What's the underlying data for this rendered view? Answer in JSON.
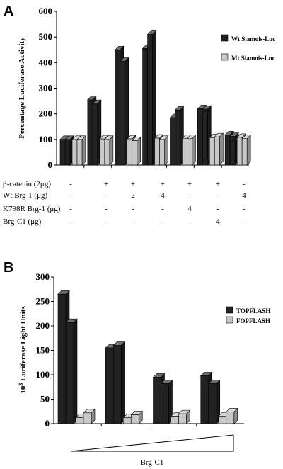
{
  "chart_data": [
    {
      "panel": "A",
      "type": "bar",
      "ylabel": "Percentage Luciferase Activity",
      "ylim": [
        0,
        600
      ],
      "yticks": [
        "0",
        "100",
        "200",
        "300",
        "400",
        "500",
        "600"
      ],
      "series": [
        {
          "name": "Wt Siamois-Luc",
          "color": "#222222",
          "values": [
            [
              100,
              100
            ],
            [
              255,
              240
            ],
            [
              450,
              405
            ],
            [
              455,
              510
            ],
            [
              185,
              215
            ],
            [
              220,
              218
            ],
            [
              118,
              112
            ]
          ]
        },
        {
          "name": "Mt Siamois-Luc",
          "color": "#c8c8c8",
          "values": [
            [
              100,
              100
            ],
            [
              102,
              100
            ],
            [
              102,
              95
            ],
            [
              105,
              100
            ],
            [
              103,
              103
            ],
            [
              107,
              110
            ],
            [
              108,
              103
            ]
          ]
        }
      ],
      "conditions": [
        {
          "label": "β-catenin (2μg)",
          "values": [
            "-",
            "+",
            "+",
            "+",
            "+",
            "+",
            "-"
          ]
        },
        {
          "label": "Wt Brg-1 (μg)",
          "values": [
            "-",
            "-",
            "2",
            "4",
            "-",
            "-",
            "4"
          ]
        },
        {
          "label": "K798R Brg-1 (μg)",
          "values": [
            "-",
            "-",
            "-",
            "-",
            "4",
            "-",
            "-"
          ]
        },
        {
          "label": "Brg-C1 (μg)",
          "values": [
            "-",
            "-",
            "-",
            "-",
            "-",
            "4",
            "-"
          ]
        }
      ],
      "legend": "right"
    },
    {
      "panel": "B",
      "type": "bar",
      "ylabel_prefix": "10",
      "ylabel_sup": "3",
      "ylabel": "Luciferase Light Units",
      "xlabel": "Brg-C1",
      "ylim": [
        0,
        300
      ],
      "yticks": [
        "0",
        "50",
        "100",
        "150",
        "200",
        "250",
        "300"
      ],
      "series": [
        {
          "name": "TOPFLASH",
          "color": "#222222",
          "values": [
            [
              265,
              207
            ],
            [
              155,
              160
            ],
            [
              95,
              82
            ],
            [
              98,
              82
            ]
          ]
        },
        {
          "name": "FOPFLASH",
          "color": "#c8c8c8",
          "values": [
            [
              12,
              22
            ],
            [
              12,
              18
            ],
            [
              15,
              20
            ],
            [
              15,
              24
            ]
          ]
        }
      ],
      "legend": "right"
    }
  ]
}
